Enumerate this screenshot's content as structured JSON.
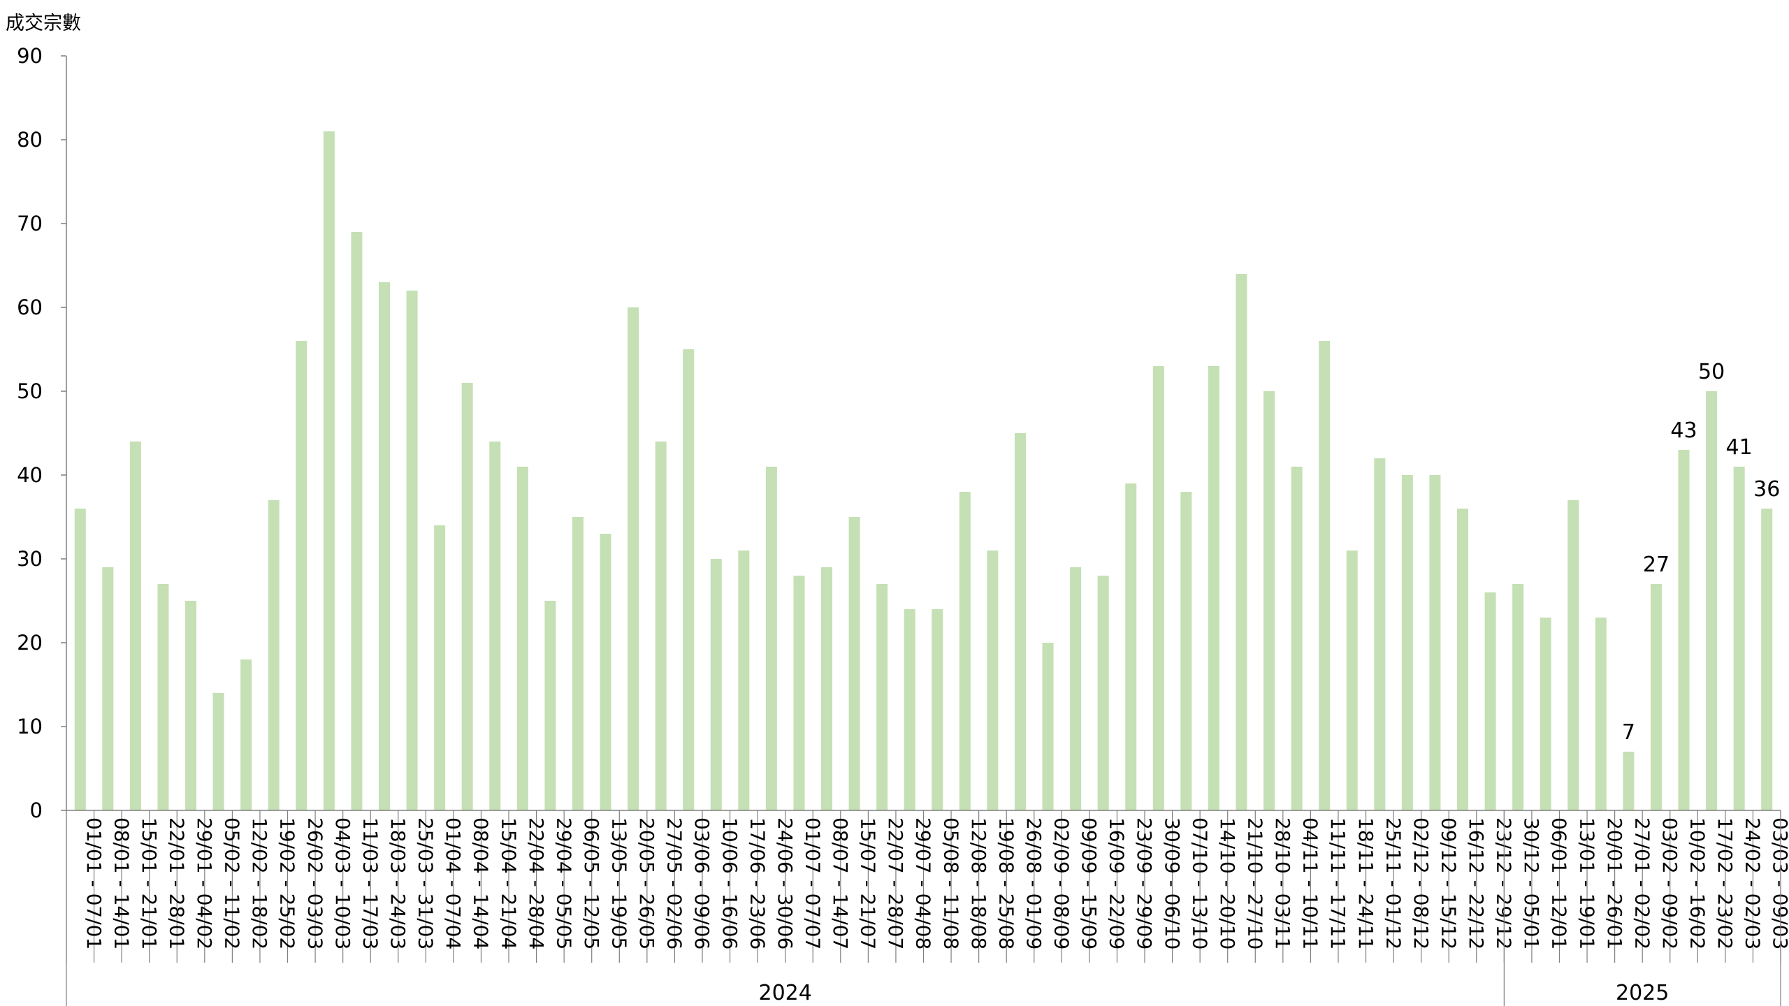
{
  "chart_data": {
    "type": "bar",
    "ylabel": "成交宗數",
    "ylim": [
      0,
      90
    ],
    "yticks": [
      0,
      10,
      20,
      30,
      40,
      50,
      60,
      70,
      80,
      90
    ],
    "bar_color": "#c5e0b4",
    "grid": false,
    "legend": "none",
    "categories": [
      "01/01 - 07/01",
      "08/01 - 14/01",
      "15/01 - 21/01",
      "22/01 - 28/01",
      "29/01 - 04/02",
      "05/02 - 11/02",
      "12/02 - 18/02",
      "19/02 - 25/02",
      "26/02 - 03/03",
      "04/03 - 10/03",
      "11/03 - 17/03",
      "18/03 - 24/03",
      "25/03 - 31/03",
      "01/04 - 07/04",
      "08/04 - 14/04",
      "15/04 - 21/04",
      "22/04 - 28/04",
      "29/04 - 05/05",
      "06/05 - 12/05",
      "13/05 - 19/05",
      "20/05 - 26/05",
      "27/05 - 02/06",
      "03/06 - 09/06",
      "10/06 - 16/06",
      "17/06 - 23/06",
      "24/06 - 30/06",
      "01/07 - 07/07",
      "08/07 - 14/07",
      "15/07 - 21/07",
      "22/07 - 28/07",
      "29/07 - 04/08",
      "05/08 - 11/08",
      "12/08 - 18/08",
      "19/08 - 25/08",
      "26/08 - 01/09",
      "02/09 - 08/09",
      "09/09 - 15/09",
      "16/09 - 22/09",
      "23/09 - 29/09",
      "30/09 - 06/10",
      "07/10 - 13/10",
      "14/10 - 20/10",
      "21/10 - 27/10",
      "28/10 - 03/11",
      "04/11 - 10/11",
      "11/11 - 17/11",
      "18/11 - 24/11",
      "25/11 - 01/12",
      "02/12 - 08/12",
      "09/12 - 15/12",
      "16/12 - 22/12",
      "23/12 - 29/12",
      "30/12 - 05/01",
      "06/01 - 12/01",
      "13/01 - 19/01",
      "20/01 - 26/01",
      "27/01 - 02/02",
      "03/02 - 09/02",
      "10/02 - 16/02",
      "17/02 - 23/02",
      "24/02 - 02/03",
      "03/03 - 09/03"
    ],
    "values": [
      36,
      29,
      44,
      27,
      25,
      14,
      18,
      37,
      56,
      81,
      69,
      63,
      62,
      34,
      51,
      44,
      41,
      25,
      35,
      33,
      60,
      44,
      55,
      30,
      31,
      41,
      28,
      29,
      35,
      27,
      24,
      24,
      38,
      31,
      45,
      20,
      29,
      28,
      39,
      53,
      38,
      53,
      64,
      50,
      41,
      56,
      31,
      42,
      40,
      40,
      36,
      26,
      27,
      23,
      37,
      23,
      7,
      27,
      43,
      50,
      41,
      36
    ],
    "data_labels": [
      {
        "index": 56,
        "text": "7"
      },
      {
        "index": 57,
        "text": "27"
      },
      {
        "index": 58,
        "text": "43"
      },
      {
        "index": 59,
        "text": "50"
      },
      {
        "index": 60,
        "text": "41"
      },
      {
        "index": 61,
        "text": "36"
      }
    ],
    "groups": [
      {
        "label": "2024",
        "start": 0,
        "end": 51
      },
      {
        "label": "2025",
        "start": 52,
        "end": 61
      }
    ]
  }
}
